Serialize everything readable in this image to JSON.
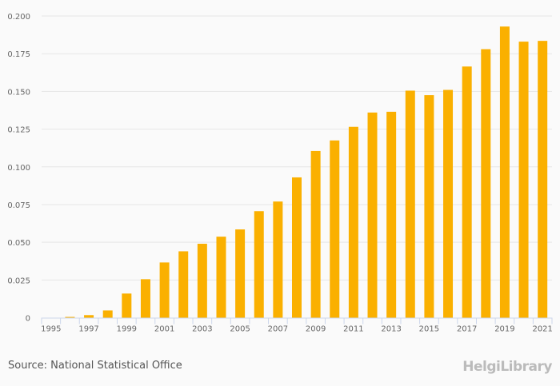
{
  "chart_data": {
    "type": "bar",
    "title": "",
    "xlabel": "",
    "ylabel": "",
    "ylim": [
      0,
      0.2
    ],
    "yticks": [
      "0",
      "0.025",
      "0.050",
      "0.075",
      "0.100",
      "0.125",
      "0.150",
      "0.175",
      "0.200"
    ],
    "ytick_values": [
      0,
      0.025,
      0.05,
      0.075,
      0.1,
      0.125,
      0.15,
      0.175,
      0.2
    ],
    "grid": true,
    "categories": [
      "1995",
      "1996",
      "1997",
      "1998",
      "1999",
      "2000",
      "2001",
      "2002",
      "2003",
      "2004",
      "2005",
      "2006",
      "2007",
      "2008",
      "2009",
      "2010",
      "2011",
      "2012",
      "2013",
      "2014",
      "2015",
      "2016",
      "2017",
      "2018",
      "2019",
      "2020",
      "2021"
    ],
    "xtick_labels": [
      "1995",
      "1997",
      "1999",
      "2001",
      "2003",
      "2005",
      "2007",
      "2009",
      "2011",
      "2013",
      "2015",
      "2017",
      "2019",
      "2021"
    ],
    "values": [
      0,
      0.0005,
      0.0017,
      0.0048,
      0.016,
      0.0255,
      0.0366,
      0.044,
      0.049,
      0.0537,
      0.0585,
      0.0706,
      0.077,
      0.093,
      0.1105,
      0.1175,
      0.1265,
      0.136,
      0.1365,
      0.1505,
      0.1475,
      0.151,
      0.1665,
      0.178,
      0.193,
      0.183,
      0.1835
    ],
    "bar_color": "#fab000"
  },
  "footer": {
    "source": "Source: National Statistical Office",
    "logo": "HelgiLibrary"
  }
}
